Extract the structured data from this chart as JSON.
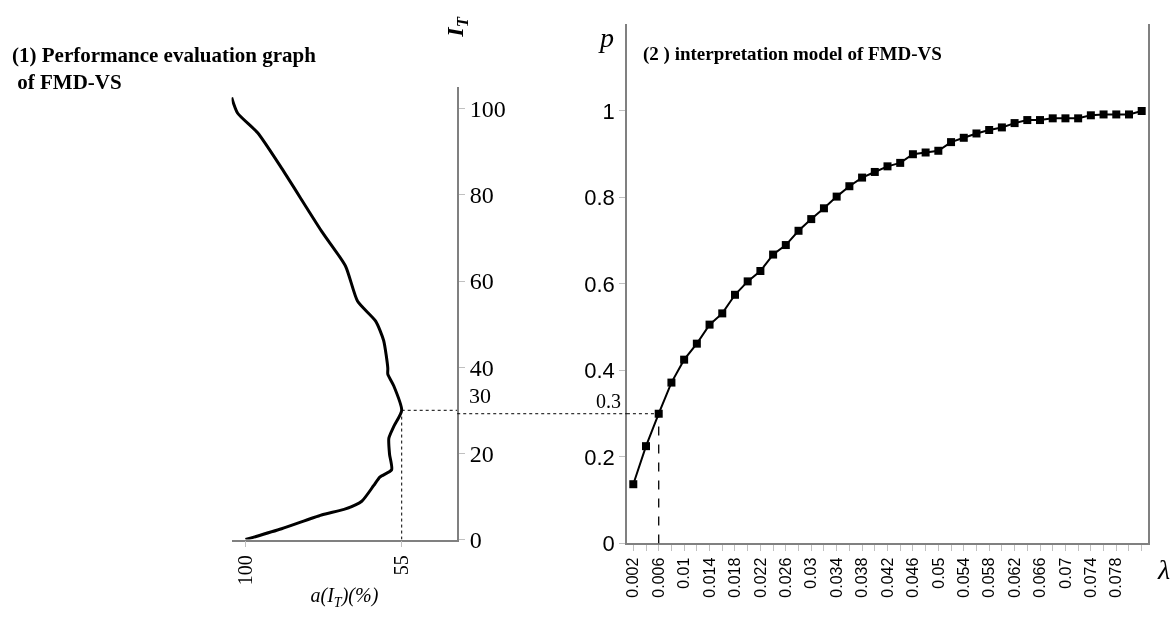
{
  "chart_data": [
    {
      "type": "line",
      "title": "(1) Performance evaluation graph\n of FMD-VS",
      "xlabel": "a(I$_{T}$)(%)",
      "ylabel": "I$_{T}$",
      "x": [
        100,
        89.6,
        78.1,
        71.2,
        66.5,
        63.1,
        61.3,
        57.9,
        58.5,
        58.7,
        57.3,
        55,
        57.3,
        59,
        59,
        60.2,
        62.5,
        67.7,
        71.2,
        78.1,
        89.6,
        96.5,
        102.3,
        104
      ],
      "series": [
        {
          "color": "#000000",
          "values": [
            0,
            2.5,
            5.7,
            7.1,
            8.9,
            12.5,
            14.5,
            16.2,
            19.8,
            23.5,
            26.2,
            30,
            35.7,
            38.4,
            39.8,
            46.2,
            50.7,
            55.3,
            63.5,
            71.6,
            86.2,
            94.4,
            99,
            102.6
          ]
        }
      ],
      "xlim": [
        104,
        39
      ],
      "xticks": [
        100,
        55
      ],
      "ylim": [
        0,
        105
      ],
      "yticks": [
        0,
        20,
        40,
        60,
        80,
        100
      ],
      "ref_lines": [
        {
          "axis": "y",
          "value": 30,
          "label": "30",
          "line_style": "dotted"
        },
        {
          "axis": "x",
          "value": 55,
          "line_style": "dotted"
        }
      ],
      "marker": "none"
    },
    {
      "type": "line",
      "title": "(2 ) interpretation model of FMD-VS",
      "xlabel": "λ",
      "ylabel": "p",
      "x": [
        0.002,
        0.004,
        0.006,
        0.008,
        0.01,
        0.012,
        0.014,
        0.016,
        0.018,
        0.02,
        0.022,
        0.024,
        0.026,
        0.028,
        0.03,
        0.032,
        0.034,
        0.036,
        0.038,
        0.04,
        0.042,
        0.044,
        0.046,
        0.048,
        0.05,
        0.052,
        0.054,
        0.056,
        0.058,
        0.06,
        0.062,
        0.064,
        0.066,
        0.068,
        0.07,
        0.072,
        0.074,
        0.076,
        0.078,
        0.08,
        0.082
      ],
      "series": [
        {
          "color": "#000000",
          "values": [
            0.137,
            0.225,
            0.3,
            0.372,
            0.425,
            0.462,
            0.506,
            0.532,
            0.575,
            0.606,
            0.63,
            0.668,
            0.69,
            0.723,
            0.75,
            0.775,
            0.802,
            0.826,
            0.846,
            0.859,
            0.872,
            0.88,
            0.9,
            0.904,
            0.908,
            0.928,
            0.938,
            0.948,
            0.956,
            0.962,
            0.972,
            0.979,
            0.979,
            0.983,
            0.983,
            0.983,
            0.99,
            0.992,
            0.992,
            0.992,
            1.0
          ]
        }
      ],
      "xlim": [
        0.001,
        0.083
      ],
      "xticks": [
        0.002,
        {
          "value": 0.004,
          "label": null
        },
        0.006,
        {
          "value": 0.008,
          "label": null
        },
        0.01,
        {
          "value": 0.012,
          "label": null
        },
        0.014,
        {
          "value": 0.016,
          "label": null
        },
        0.018,
        {
          "value": 0.02,
          "label": null
        },
        0.022,
        {
          "value": 0.024,
          "label": null
        },
        0.026,
        {
          "value": 0.028,
          "label": null
        },
        0.03,
        {
          "value": 0.032,
          "label": null
        },
        0.034,
        {
          "value": 0.036,
          "label": null
        },
        0.038,
        {
          "value": 0.04,
          "label": null
        },
        0.042,
        {
          "value": 0.044,
          "label": null
        },
        0.046,
        {
          "value": 0.048,
          "label": null
        },
        0.05,
        {
          "value": 0.052,
          "label": null
        },
        0.054,
        {
          "value": 0.056,
          "label": null
        },
        0.058,
        {
          "value": 0.06,
          "label": null
        },
        0.062,
        {
          "value": 0.064,
          "label": null
        },
        0.066,
        {
          "value": 0.068,
          "label": null
        },
        0.07,
        {
          "value": 0.072,
          "label": null
        },
        0.074,
        {
          "value": 0.076,
          "label": null
        },
        0.078,
        {
          "value": 0.08,
          "label": null
        },
        {
          "value": 0.082,
          "label": null
        }
      ],
      "ylim": [
        0,
        1.2
      ],
      "yticks": [
        0,
        0.2,
        0.4,
        0.6,
        0.8,
        1
      ],
      "ref_lines": [
        {
          "axis": "y",
          "value": 0.3,
          "label": "0.3",
          "line_style": "dotted"
        },
        {
          "axis": "x",
          "value": 0.006,
          "line_style": "dashed"
        }
      ],
      "marker": "square"
    }
  ]
}
